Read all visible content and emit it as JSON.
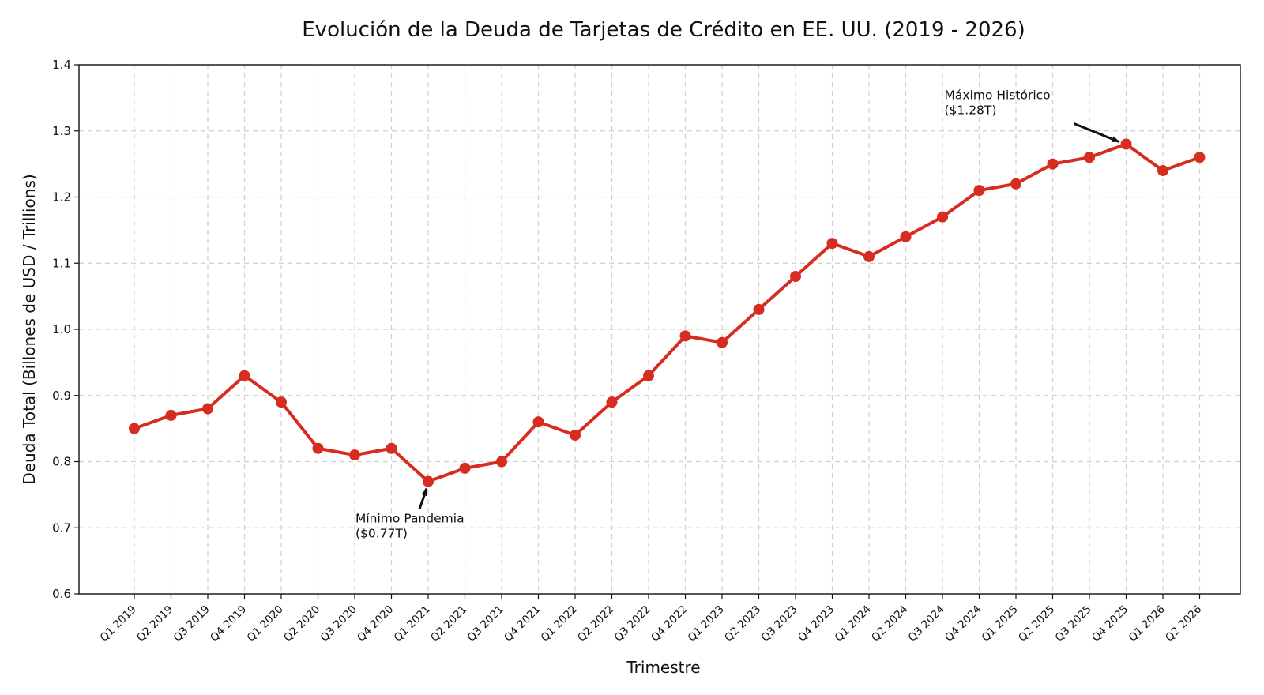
{
  "chart_data": {
    "type": "line",
    "title": "Evolución de la Deuda de Tarjetas de Crédito en EE. UU. (2019 - 2026)",
    "xlabel": "Trimestre",
    "ylabel": "Deuda Total (Billones de USD / Trillions)",
    "ylim": [
      0.6,
      1.4
    ],
    "yticks": [
      "0.6",
      "0.7",
      "0.8",
      "0.9",
      "1.0",
      "1.1",
      "1.2",
      "1.3",
      "1.4"
    ],
    "grid": true,
    "categories": [
      "Q1 2019",
      "Q2 2019",
      "Q3 2019",
      "Q4 2019",
      "Q1 2020",
      "Q2 2020",
      "Q3 2020",
      "Q4 2020",
      "Q1 2021",
      "Q2 2021",
      "Q3 2021",
      "Q4 2021",
      "Q1 2022",
      "Q2 2022",
      "Q3 2022",
      "Q4 2022",
      "Q1 2023",
      "Q2 2023",
      "Q3 2023",
      "Q4 2023",
      "Q1 2024",
      "Q2 2024",
      "Q3 2024",
      "Q4 2024",
      "Q1 2025",
      "Q2 2025",
      "Q3 2025",
      "Q4 2025",
      "Q1 2026",
      "Q2 2026"
    ],
    "series": [
      {
        "color": "#d62d20",
        "values": [
          0.85,
          0.87,
          0.88,
          0.93,
          0.89,
          0.82,
          0.81,
          0.82,
          0.77,
          0.79,
          0.8,
          0.86,
          0.84,
          0.89,
          0.93,
          0.99,
          0.98,
          1.03,
          1.08,
          1.13,
          1.11,
          1.14,
          1.17,
          1.21,
          1.22,
          1.25,
          1.26,
          1.28,
          1.24,
          1.26
        ]
      }
    ],
    "annotations": [
      {
        "lines": [
          "Mínimo Pandemia",
          "($0.77T)"
        ],
        "category": "Q1 2021",
        "value": 0.77,
        "text_at": "below-left"
      },
      {
        "lines": [
          "Máximo Histórico",
          "($1.28T)"
        ],
        "category": "Q4 2025",
        "value": 1.28,
        "text_at": "above-left"
      }
    ]
  }
}
